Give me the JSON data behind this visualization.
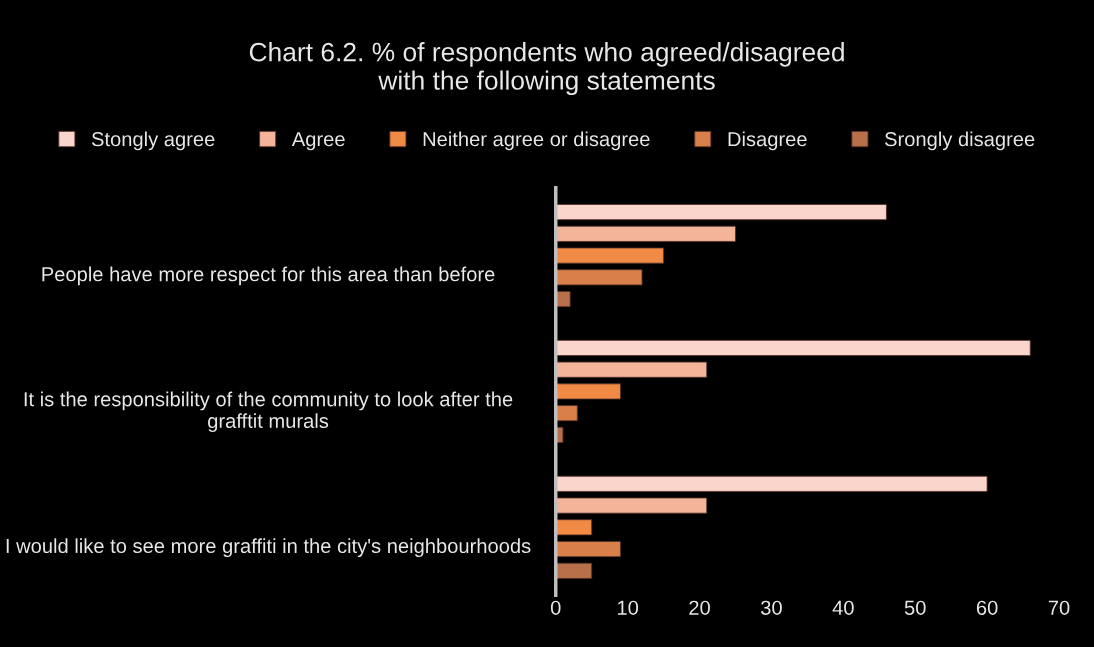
{
  "chart_data": {
    "type": "bar",
    "orientation": "horizontal",
    "title": "Chart 6.2. % of respondents who agreed/disagreed\nwith the following statements",
    "categories": [
      "People have more respect for this area than before",
      "It is the responsibility of the community to look after the grafftit murals",
      "I would like to see more graffiti in the city's neighbourhoods"
    ],
    "series": [
      {
        "name": "Stongly agree",
        "color": "#f9d5cc",
        "values": [
          46,
          66,
          60
        ]
      },
      {
        "name": "Agree",
        "color": "#f4b49a",
        "values": [
          25,
          21,
          21
        ]
      },
      {
        "name": "Neither agree or disagree",
        "color": "#f08a44",
        "values": [
          15,
          9,
          5
        ]
      },
      {
        "name": "Disagree",
        "color": "#d9804a",
        "values": [
          12,
          3,
          9
        ]
      },
      {
        "name": "Srongly disagree",
        "color": "#b8704a",
        "values": [
          2,
          1,
          5
        ]
      }
    ],
    "xlim": [
      0,
      70
    ],
    "xticks": [
      0,
      10,
      20,
      30,
      40,
      50,
      60,
      70
    ],
    "grid": false,
    "legend": "top"
  }
}
